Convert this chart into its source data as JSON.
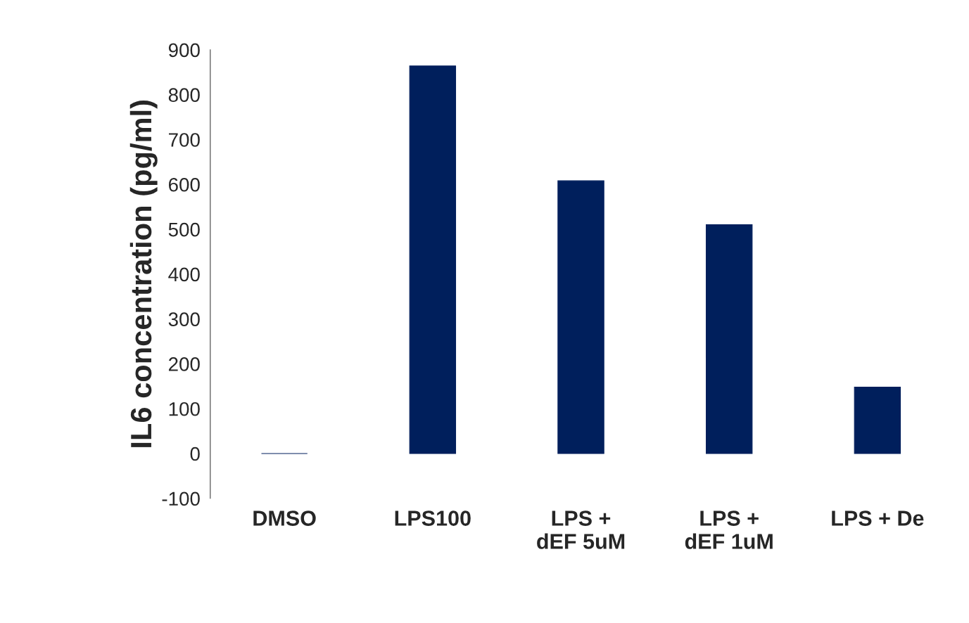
{
  "chart_data": {
    "type": "bar",
    "ylabel": "IL6 concentration (pg/ml)",
    "categories": [
      "DMSO",
      "LPS100",
      "LPS +\ndEF 5uM",
      "LPS +\ndEF 1uM",
      "LPS + De"
    ],
    "series": [
      {
        "color": "#001f5c",
        "values": [
          0,
          864,
          608,
          510,
          148
        ]
      }
    ],
    "ylim": [
      -100,
      900
    ],
    "yticks": [
      -100,
      0,
      100,
      200,
      300,
      400,
      500,
      600,
      700,
      800,
      900
    ],
    "grid": false,
    "legend": false
  }
}
